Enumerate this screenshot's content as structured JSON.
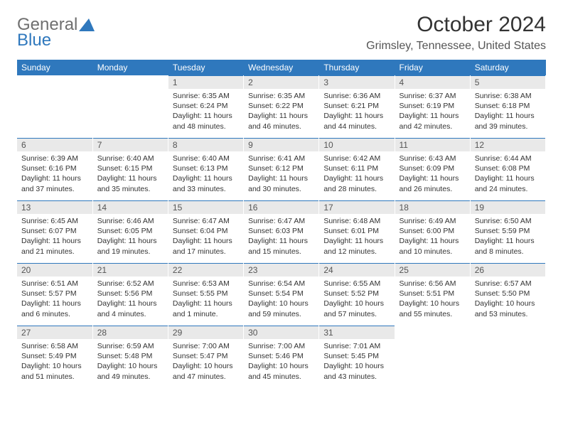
{
  "brand": {
    "part1": "General",
    "part2": "Blue"
  },
  "title": "October 2024",
  "location": "Grimsley, Tennessee, United States",
  "theme": {
    "header_bg": "#2f78bd",
    "header_fg": "#ffffff",
    "daynum_bg": "#e9e9e9",
    "daynum_border": "#2f78bd",
    "body_bg": "#ffffff",
    "text_color": "#333333",
    "font_family": "Arial",
    "month_fontsize": 30,
    "location_fontsize": 16,
    "dayheader_fontsize": 12,
    "daybody_fontsize": 10.5
  },
  "day_headers": [
    "Sunday",
    "Monday",
    "Tuesday",
    "Wednesday",
    "Thursday",
    "Friday",
    "Saturday"
  ],
  "weeks": [
    [
      null,
      null,
      {
        "n": "1",
        "sr": "Sunrise: 6:35 AM",
        "ss": "Sunset: 6:24 PM",
        "d1": "Daylight: 11 hours",
        "d2": "and 48 minutes."
      },
      {
        "n": "2",
        "sr": "Sunrise: 6:35 AM",
        "ss": "Sunset: 6:22 PM",
        "d1": "Daylight: 11 hours",
        "d2": "and 46 minutes."
      },
      {
        "n": "3",
        "sr": "Sunrise: 6:36 AM",
        "ss": "Sunset: 6:21 PM",
        "d1": "Daylight: 11 hours",
        "d2": "and 44 minutes."
      },
      {
        "n": "4",
        "sr": "Sunrise: 6:37 AM",
        "ss": "Sunset: 6:19 PM",
        "d1": "Daylight: 11 hours",
        "d2": "and 42 minutes."
      },
      {
        "n": "5",
        "sr": "Sunrise: 6:38 AM",
        "ss": "Sunset: 6:18 PM",
        "d1": "Daylight: 11 hours",
        "d2": "and 39 minutes."
      }
    ],
    [
      {
        "n": "6",
        "sr": "Sunrise: 6:39 AM",
        "ss": "Sunset: 6:16 PM",
        "d1": "Daylight: 11 hours",
        "d2": "and 37 minutes."
      },
      {
        "n": "7",
        "sr": "Sunrise: 6:40 AM",
        "ss": "Sunset: 6:15 PM",
        "d1": "Daylight: 11 hours",
        "d2": "and 35 minutes."
      },
      {
        "n": "8",
        "sr": "Sunrise: 6:40 AM",
        "ss": "Sunset: 6:13 PM",
        "d1": "Daylight: 11 hours",
        "d2": "and 33 minutes."
      },
      {
        "n": "9",
        "sr": "Sunrise: 6:41 AM",
        "ss": "Sunset: 6:12 PM",
        "d1": "Daylight: 11 hours",
        "d2": "and 30 minutes."
      },
      {
        "n": "10",
        "sr": "Sunrise: 6:42 AM",
        "ss": "Sunset: 6:11 PM",
        "d1": "Daylight: 11 hours",
        "d2": "and 28 minutes."
      },
      {
        "n": "11",
        "sr": "Sunrise: 6:43 AM",
        "ss": "Sunset: 6:09 PM",
        "d1": "Daylight: 11 hours",
        "d2": "and 26 minutes."
      },
      {
        "n": "12",
        "sr": "Sunrise: 6:44 AM",
        "ss": "Sunset: 6:08 PM",
        "d1": "Daylight: 11 hours",
        "d2": "and 24 minutes."
      }
    ],
    [
      {
        "n": "13",
        "sr": "Sunrise: 6:45 AM",
        "ss": "Sunset: 6:07 PM",
        "d1": "Daylight: 11 hours",
        "d2": "and 21 minutes."
      },
      {
        "n": "14",
        "sr": "Sunrise: 6:46 AM",
        "ss": "Sunset: 6:05 PM",
        "d1": "Daylight: 11 hours",
        "d2": "and 19 minutes."
      },
      {
        "n": "15",
        "sr": "Sunrise: 6:47 AM",
        "ss": "Sunset: 6:04 PM",
        "d1": "Daylight: 11 hours",
        "d2": "and 17 minutes."
      },
      {
        "n": "16",
        "sr": "Sunrise: 6:47 AM",
        "ss": "Sunset: 6:03 PM",
        "d1": "Daylight: 11 hours",
        "d2": "and 15 minutes."
      },
      {
        "n": "17",
        "sr": "Sunrise: 6:48 AM",
        "ss": "Sunset: 6:01 PM",
        "d1": "Daylight: 11 hours",
        "d2": "and 12 minutes."
      },
      {
        "n": "18",
        "sr": "Sunrise: 6:49 AM",
        "ss": "Sunset: 6:00 PM",
        "d1": "Daylight: 11 hours",
        "d2": "and 10 minutes."
      },
      {
        "n": "19",
        "sr": "Sunrise: 6:50 AM",
        "ss": "Sunset: 5:59 PM",
        "d1": "Daylight: 11 hours",
        "d2": "and 8 minutes."
      }
    ],
    [
      {
        "n": "20",
        "sr": "Sunrise: 6:51 AM",
        "ss": "Sunset: 5:57 PM",
        "d1": "Daylight: 11 hours",
        "d2": "and 6 minutes."
      },
      {
        "n": "21",
        "sr": "Sunrise: 6:52 AM",
        "ss": "Sunset: 5:56 PM",
        "d1": "Daylight: 11 hours",
        "d2": "and 4 minutes."
      },
      {
        "n": "22",
        "sr": "Sunrise: 6:53 AM",
        "ss": "Sunset: 5:55 PM",
        "d1": "Daylight: 11 hours",
        "d2": "and 1 minute."
      },
      {
        "n": "23",
        "sr": "Sunrise: 6:54 AM",
        "ss": "Sunset: 5:54 PM",
        "d1": "Daylight: 10 hours",
        "d2": "and 59 minutes."
      },
      {
        "n": "24",
        "sr": "Sunrise: 6:55 AM",
        "ss": "Sunset: 5:52 PM",
        "d1": "Daylight: 10 hours",
        "d2": "and 57 minutes."
      },
      {
        "n": "25",
        "sr": "Sunrise: 6:56 AM",
        "ss": "Sunset: 5:51 PM",
        "d1": "Daylight: 10 hours",
        "d2": "and 55 minutes."
      },
      {
        "n": "26",
        "sr": "Sunrise: 6:57 AM",
        "ss": "Sunset: 5:50 PM",
        "d1": "Daylight: 10 hours",
        "d2": "and 53 minutes."
      }
    ],
    [
      {
        "n": "27",
        "sr": "Sunrise: 6:58 AM",
        "ss": "Sunset: 5:49 PM",
        "d1": "Daylight: 10 hours",
        "d2": "and 51 minutes."
      },
      {
        "n": "28",
        "sr": "Sunrise: 6:59 AM",
        "ss": "Sunset: 5:48 PM",
        "d1": "Daylight: 10 hours",
        "d2": "and 49 minutes."
      },
      {
        "n": "29",
        "sr": "Sunrise: 7:00 AM",
        "ss": "Sunset: 5:47 PM",
        "d1": "Daylight: 10 hours",
        "d2": "and 47 minutes."
      },
      {
        "n": "30",
        "sr": "Sunrise: 7:00 AM",
        "ss": "Sunset: 5:46 PM",
        "d1": "Daylight: 10 hours",
        "d2": "and 45 minutes."
      },
      {
        "n": "31",
        "sr": "Sunrise: 7:01 AM",
        "ss": "Sunset: 5:45 PM",
        "d1": "Daylight: 10 hours",
        "d2": "and 43 minutes."
      },
      null,
      null
    ]
  ]
}
